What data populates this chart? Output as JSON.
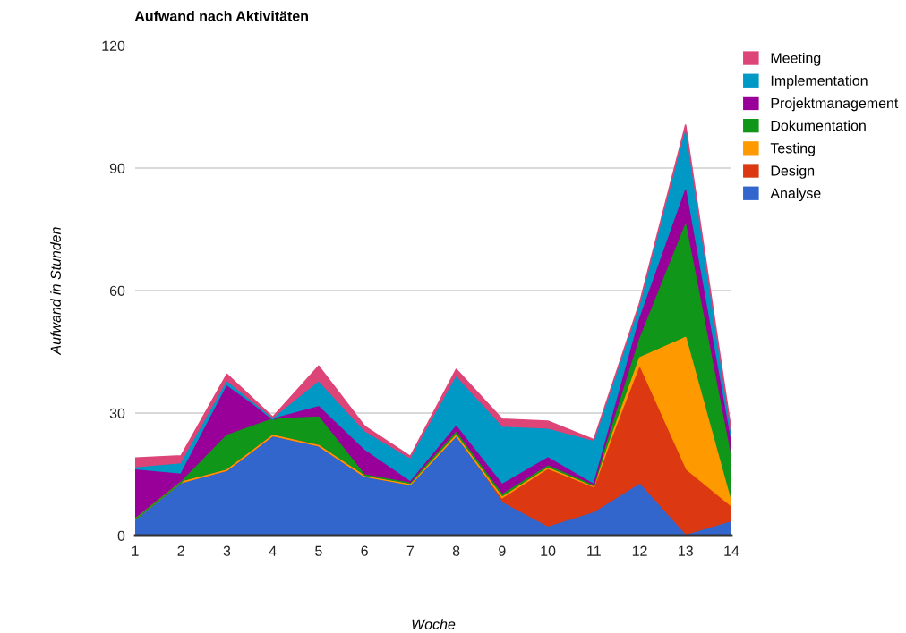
{
  "chart_data": {
    "type": "area",
    "stacked": true,
    "title": "Aufwand nach Aktivitäten",
    "xlabel": "Woche",
    "ylabel": "Aufwand in Stunden",
    "x": [
      1,
      2,
      3,
      4,
      5,
      6,
      7,
      8,
      9,
      10,
      11,
      12,
      13,
      14
    ],
    "xlim": [
      1,
      14
    ],
    "xticks": [
      1,
      2,
      3,
      4,
      5,
      6,
      7,
      8,
      9,
      10,
      11,
      12,
      13,
      14
    ],
    "ylim": [
      0,
      120
    ],
    "yticks": [
      0,
      30,
      60,
      90,
      120
    ],
    "grid": "y",
    "legend": "top right",
    "series": [
      {
        "name": "Analyse",
        "color": "#3366cc",
        "values": [
          4,
          13,
          16,
          24.5,
          22,
          14.5,
          12.5,
          24.5,
          8,
          2,
          5.5,
          12.5,
          0,
          3.3
        ]
      },
      {
        "name": "Design",
        "color": "#dc3912",
        "values": [
          0,
          0,
          0,
          0,
          0,
          0,
          0,
          0,
          1.3,
          14.5,
          6.5,
          28.5,
          16,
          3.5
        ]
      },
      {
        "name": "Testing",
        "color": "#ff9900",
        "values": [
          0,
          0,
          0,
          0,
          0,
          0,
          0,
          0,
          0,
          0,
          0,
          2.5,
          32.5,
          1
        ]
      },
      {
        "name": "Dokumentation",
        "color": "#109618",
        "values": [
          0,
          0,
          8.5,
          4,
          7,
          0.3,
          0.3,
          0.7,
          0.7,
          0.5,
          0.2,
          4.5,
          27.5,
          10.5
        ]
      },
      {
        "name": "Projektmanagement",
        "color": "#990099",
        "values": [
          12,
          2,
          12,
          0,
          2.5,
          6,
          0.3,
          1.5,
          2.5,
          2,
          0.3,
          5,
          8.5,
          3.5
        ]
      },
      {
        "name": "Implementation",
        "color": "#0099c6",
        "values": [
          0.5,
          2.5,
          1,
          0,
          6,
          4.5,
          5.5,
          12,
          14,
          7,
          10.5,
          3,
          14.5,
          2
        ]
      },
      {
        "name": "Meeting",
        "color": "#dd4477",
        "values": [
          2.5,
          2,
          2,
          0.5,
          4,
          1.5,
          0.8,
          2,
          2,
          2,
          0.5,
          1,
          1.5,
          1.5
        ]
      }
    ]
  }
}
